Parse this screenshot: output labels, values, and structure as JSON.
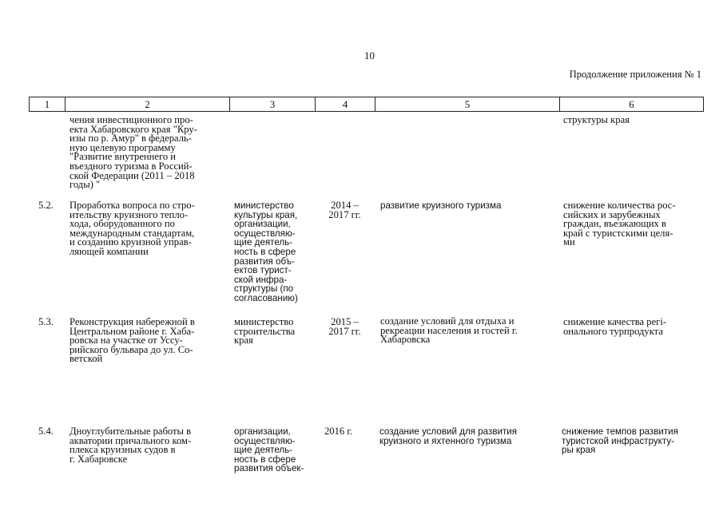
{
  "page_number": "10",
  "continuation_label": "Продолжение приложения № 1",
  "table": {
    "headers": [
      "1",
      "2",
      "3",
      "4",
      "5",
      "6"
    ],
    "rows": [
      {
        "num": "",
        "activity": [
          "чения инвестиционного про-",
          "екта Хабаровского края \"Кру-",
          "изы по р. Амур\" в федераль-",
          "ную целевую программу",
          "\"Развитие внутреннего и",
          "въездного туризма в Россий-",
          "ской Федерации (2011 – 2018",
          "годы) \""
        ],
        "executor": [],
        "period": [],
        "result": [],
        "consequence": [
          "структуры края"
        ]
      },
      {
        "num": "5.2.",
        "activity": [
          "Проработка вопроса по стро-",
          "ительству круизного тепло-",
          "хода, оборудованного по",
          "международным стандартам,",
          "и созданию круизной управ-",
          "ляющей компании"
        ],
        "executor": [
          "министерство",
          "культуры края,",
          "организации,",
          "осуществляю-",
          "щие деятель-",
          "ность в сфере",
          "развития объ-",
          "ектов турист-",
          "ской инфра-",
          "структуры (по",
          "согласованию)"
        ],
        "period": [
          "2014 –",
          "2017 гг."
        ],
        "result": [
          "развитие круизного туризма"
        ],
        "consequence": [
          "снижение количества рос-",
          "сийских и зарубежных",
          "граждан, въезжающих в",
          "край с туристскими целя-",
          "ми"
        ]
      },
      {
        "num": "5.3.",
        "activity": [
          "Реконструкция набережной в",
          "Центральном районе г. Хаба-",
          "ровска на участке от Уссу-",
          "рийского бульвара до ул. Со-",
          "ветской"
        ],
        "executor": [
          "министерство",
          "строительства",
          "края"
        ],
        "period": [
          "2015 –",
          "2017 гг."
        ],
        "result": [
          "создание условий для отдыха и",
          "рекреации населения и гостей г.",
          "Хабаровска"
        ],
        "consequence": [
          "снижение качества регi-",
          "онального турпродукта"
        ]
      },
      {
        "num": "5.4.",
        "activity": [
          "Дноуглубительные работы в",
          "акватории причального ком-",
          "плекса круизных судов в",
          "г. Хабаровске"
        ],
        "executor": [
          "организации,",
          "осуществляю-",
          "щие деятель-",
          "ность в сфере",
          "развития объек-"
        ],
        "period": [
          "2016 г."
        ],
        "result": [
          "создание условий для развития",
          "круизного и яхтенного туризма"
        ],
        "consequence": [
          "снижение темпов развития",
          "туристской инфраструкту-",
          "ры края"
        ]
      }
    ]
  }
}
